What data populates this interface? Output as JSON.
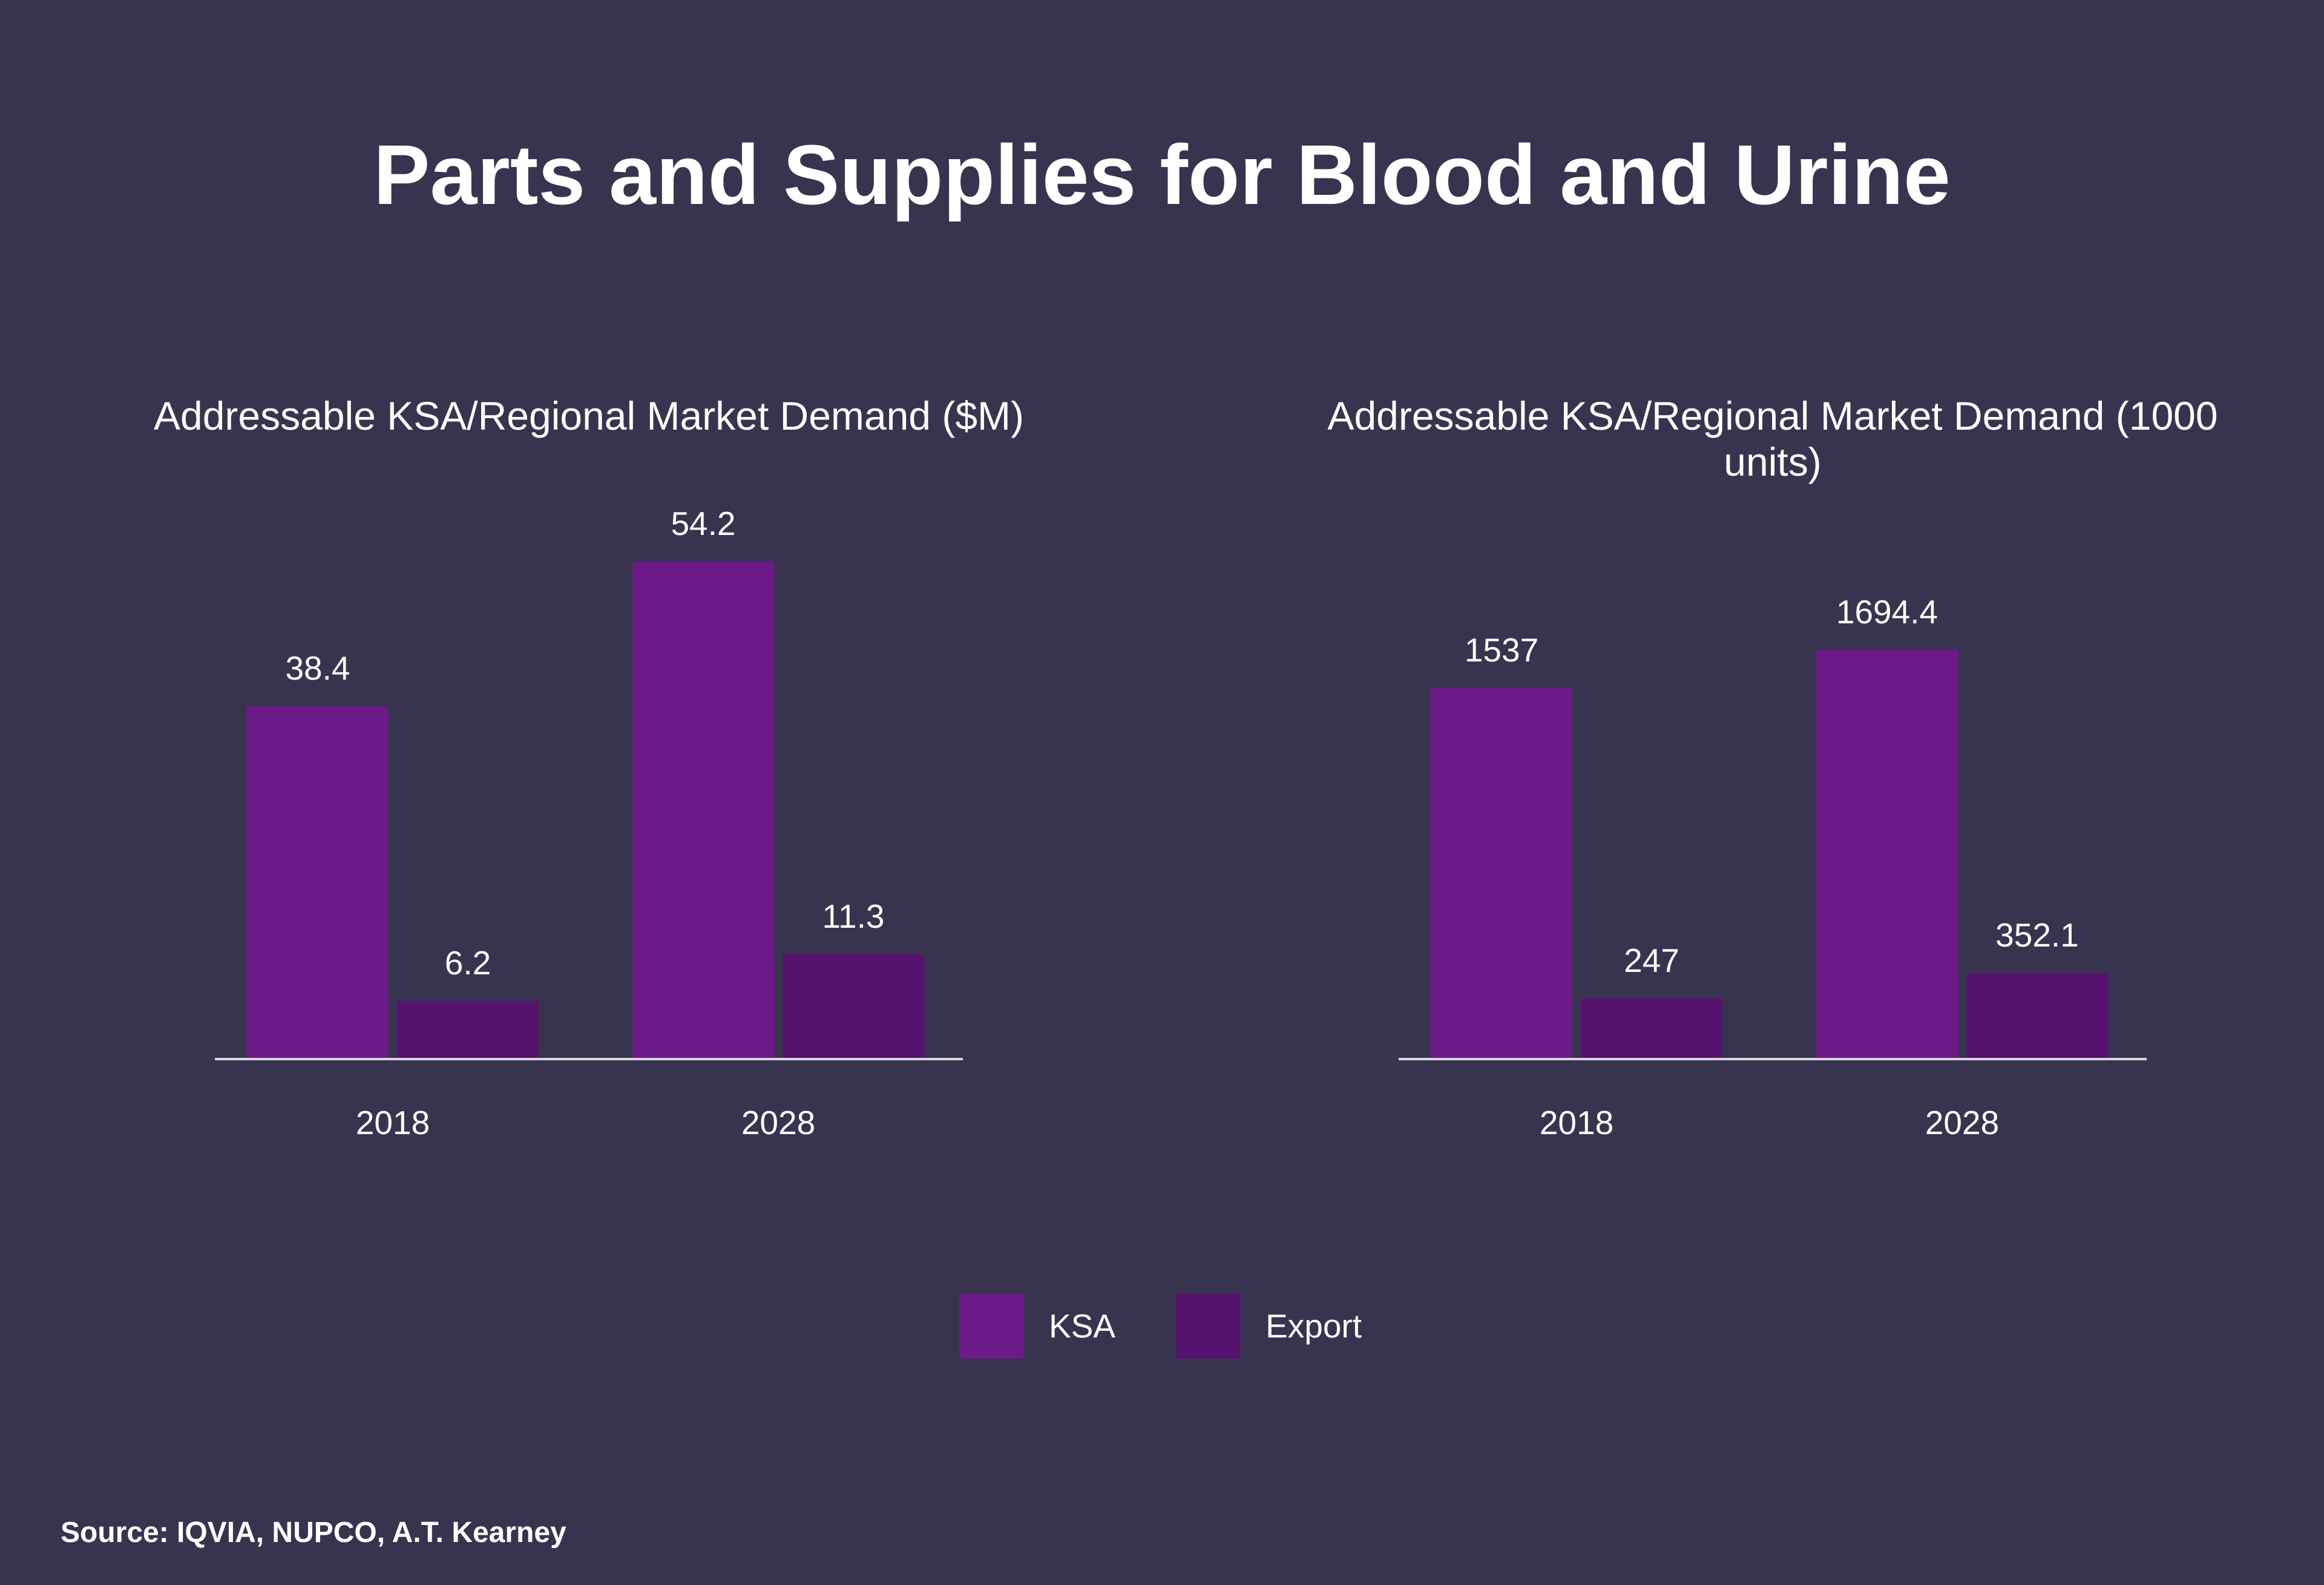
{
  "title": "Parts and Supplies for Blood and Urine",
  "source": "Source: IQVIA, NUPCO, A.T. Kearney",
  "legend": {
    "position": "bottom-center",
    "items": [
      {
        "label": "KSA",
        "color": "#6b1a88"
      },
      {
        "label": "Export",
        "color": "#55126e"
      }
    ]
  },
  "colors": {
    "background": "#38334e",
    "text": "#ffffff",
    "axis_line": "#d9d6e0",
    "ksa": "#6b1a88",
    "export": "#55126e"
  },
  "chart_data": [
    {
      "type": "bar",
      "title": "Addressable KSA/Regional Market Demand ($M)",
      "categories": [
        "2018",
        "2028"
      ],
      "series": [
        {
          "name": "KSA",
          "color": "#6b1a88",
          "values": [
            38.4,
            54.2
          ]
        },
        {
          "name": "Export",
          "color": "#55126e",
          "values": [
            6.2,
            11.3
          ]
        }
      ],
      "xlabel": "",
      "ylabel": "",
      "ylim": [
        0,
        60
      ],
      "grid": false,
      "y_axis_visible": false,
      "value_labels": true,
      "legend_position": "bottom-center"
    },
    {
      "type": "bar",
      "title": "Addressable KSA/Regional Market Demand (1000 units)",
      "categories": [
        "2018",
        "2028"
      ],
      "series": [
        {
          "name": "KSA",
          "color": "#6b1a88",
          "values": [
            1537,
            1694.4
          ]
        },
        {
          "name": "Export",
          "color": "#55126e",
          "values": [
            247,
            352.1
          ]
        }
      ],
      "xlabel": "",
      "ylabel": "",
      "ylim": [
        0,
        1900
      ],
      "grid": false,
      "y_axis_visible": false,
      "value_labels": true,
      "legend_position": "bottom-center"
    }
  ]
}
